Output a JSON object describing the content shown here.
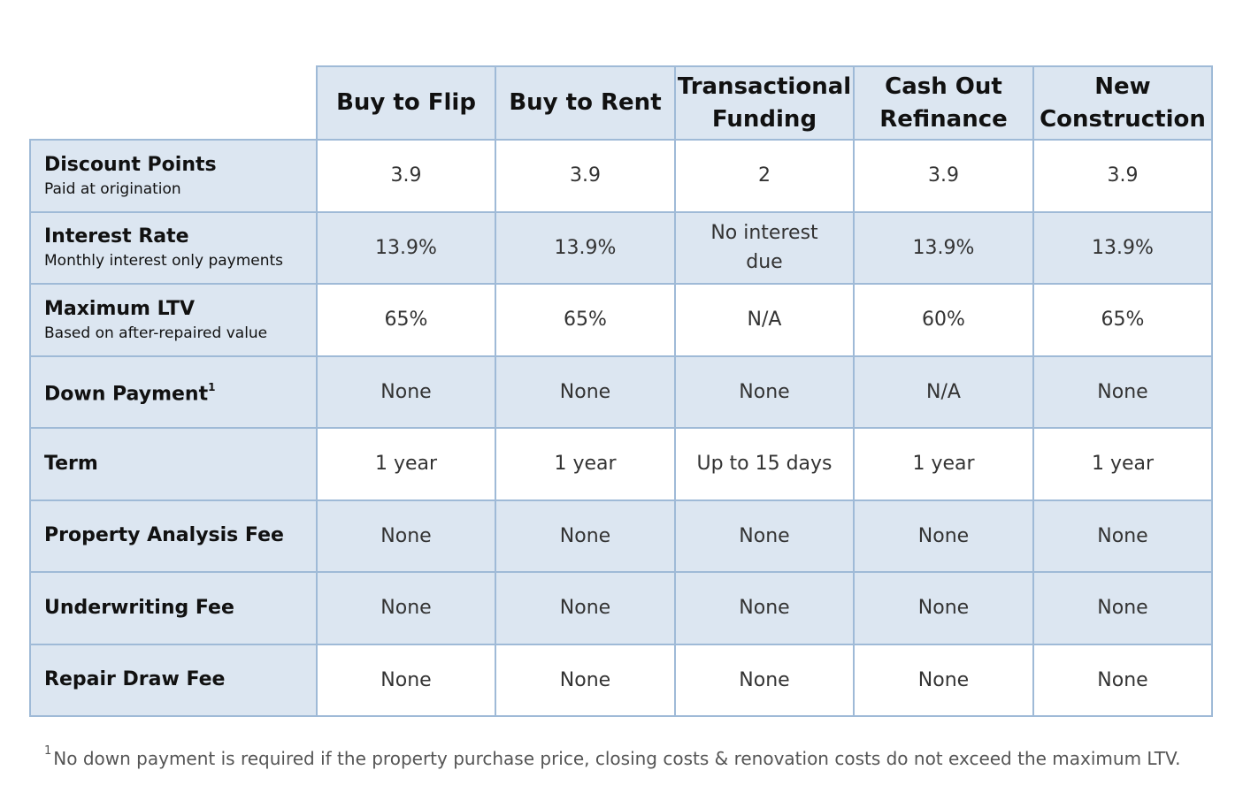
{
  "columns": [
    "Buy to Flip",
    "Buy to Rent",
    "Transactional Funding",
    "Cash Out Refinance",
    "New Construction"
  ],
  "column_lines": [
    [
      "Buy to Flip"
    ],
    [
      "Buy to Rent"
    ],
    [
      "Transactional",
      "Funding"
    ],
    [
      "Cash Out",
      "Refinance"
    ],
    [
      "New",
      "Construction"
    ]
  ],
  "rows": [
    {
      "label": "Discount Points",
      "sublabel": "Paid at origination",
      "values": [
        "3.9",
        "3.9",
        "2",
        "3.9",
        "3.9"
      ]
    },
    {
      "label": "Interest Rate",
      "sublabel": "Monthly interest only payments",
      "values": [
        "13.9%",
        "13.9%",
        "No interest due",
        "13.9%",
        "13.9%"
      ]
    },
    {
      "label": "Maximum LTV",
      "sublabel": "Based on after-repaired value",
      "values": [
        "65%",
        "65%",
        "N/A",
        "60%",
        "65%"
      ]
    },
    {
      "label": "Down Payment",
      "superscript": "1",
      "values": [
        "None",
        "None",
        "None",
        "N/A",
        "None"
      ]
    },
    {
      "label": "Term",
      "values": [
        "1 year",
        "1 year",
        "Up to 15 days",
        "1 year",
        "1 year"
      ]
    },
    {
      "label": "Property Analysis Fee",
      "values": [
        "None",
        "None",
        "None",
        "None",
        "None"
      ]
    },
    {
      "label": "Underwriting Fee",
      "values": [
        "None",
        "None",
        "None",
        "None",
        "None"
      ]
    },
    {
      "label": "Repair Draw Fee",
      "values": [
        "None",
        "None",
        "None",
        "None",
        "None"
      ]
    }
  ],
  "footnote": {
    "marker": "1",
    "text": "No down payment is required if the property purchase price, closing costs & renovation costs do not exceed the maximum LTV."
  },
  "colors": {
    "header_fill": "#dce6f1",
    "border": "#9fbad7",
    "plain_fill": "#ffffff"
  }
}
